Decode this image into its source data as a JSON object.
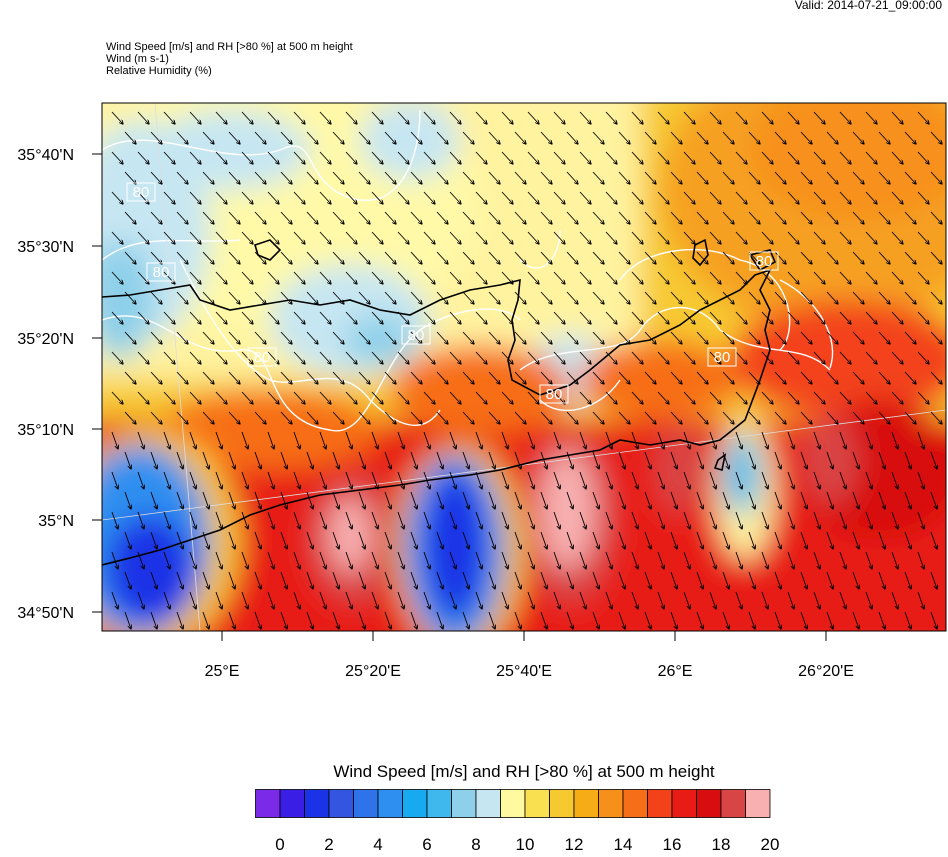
{
  "valid": "Valid: 2014-07-21_09:00:00",
  "header": {
    "line1": "Wind Speed [m/s] and RH [>80 %] at 500 m height",
    "line2": "Wind   (m s-1)",
    "line3": "Relative Humidity   (%)"
  },
  "axes": {
    "lat_ticks": [
      "35°40'N",
      "35°30'N",
      "35°20'N",
      "35°10'N",
      "35°N",
      "34°50'N"
    ],
    "lon_ticks": [
      "25°E",
      "25°20'E",
      "25°40'E",
      "26°E",
      "26°20'E"
    ]
  },
  "contour_labels": [
    "80",
    "80",
    "80",
    "80",
    "80",
    "80",
    "80"
  ],
  "colorbar": {
    "title": "Wind Speed [m/s] and RH [>80 %] at 500 m height",
    "colors": [
      "#7a2be8",
      "#3b1ee6",
      "#1a33e6",
      "#3355e0",
      "#2f73ea",
      "#2f8ff0",
      "#18aaf0",
      "#3fb8ee",
      "#8ed0ea",
      "#c6e6f2",
      "#fff9a0",
      "#f9e050",
      "#f7c930",
      "#f6ad15",
      "#f7901a",
      "#f76e18",
      "#f3421a",
      "#e81c14",
      "#d80d10",
      "#d94545",
      "#f8b0b0"
    ],
    "tick_labels": [
      "0",
      "2",
      "4",
      "6",
      "8",
      "10",
      "12",
      "14",
      "16",
      "18",
      "20"
    ]
  }
}
